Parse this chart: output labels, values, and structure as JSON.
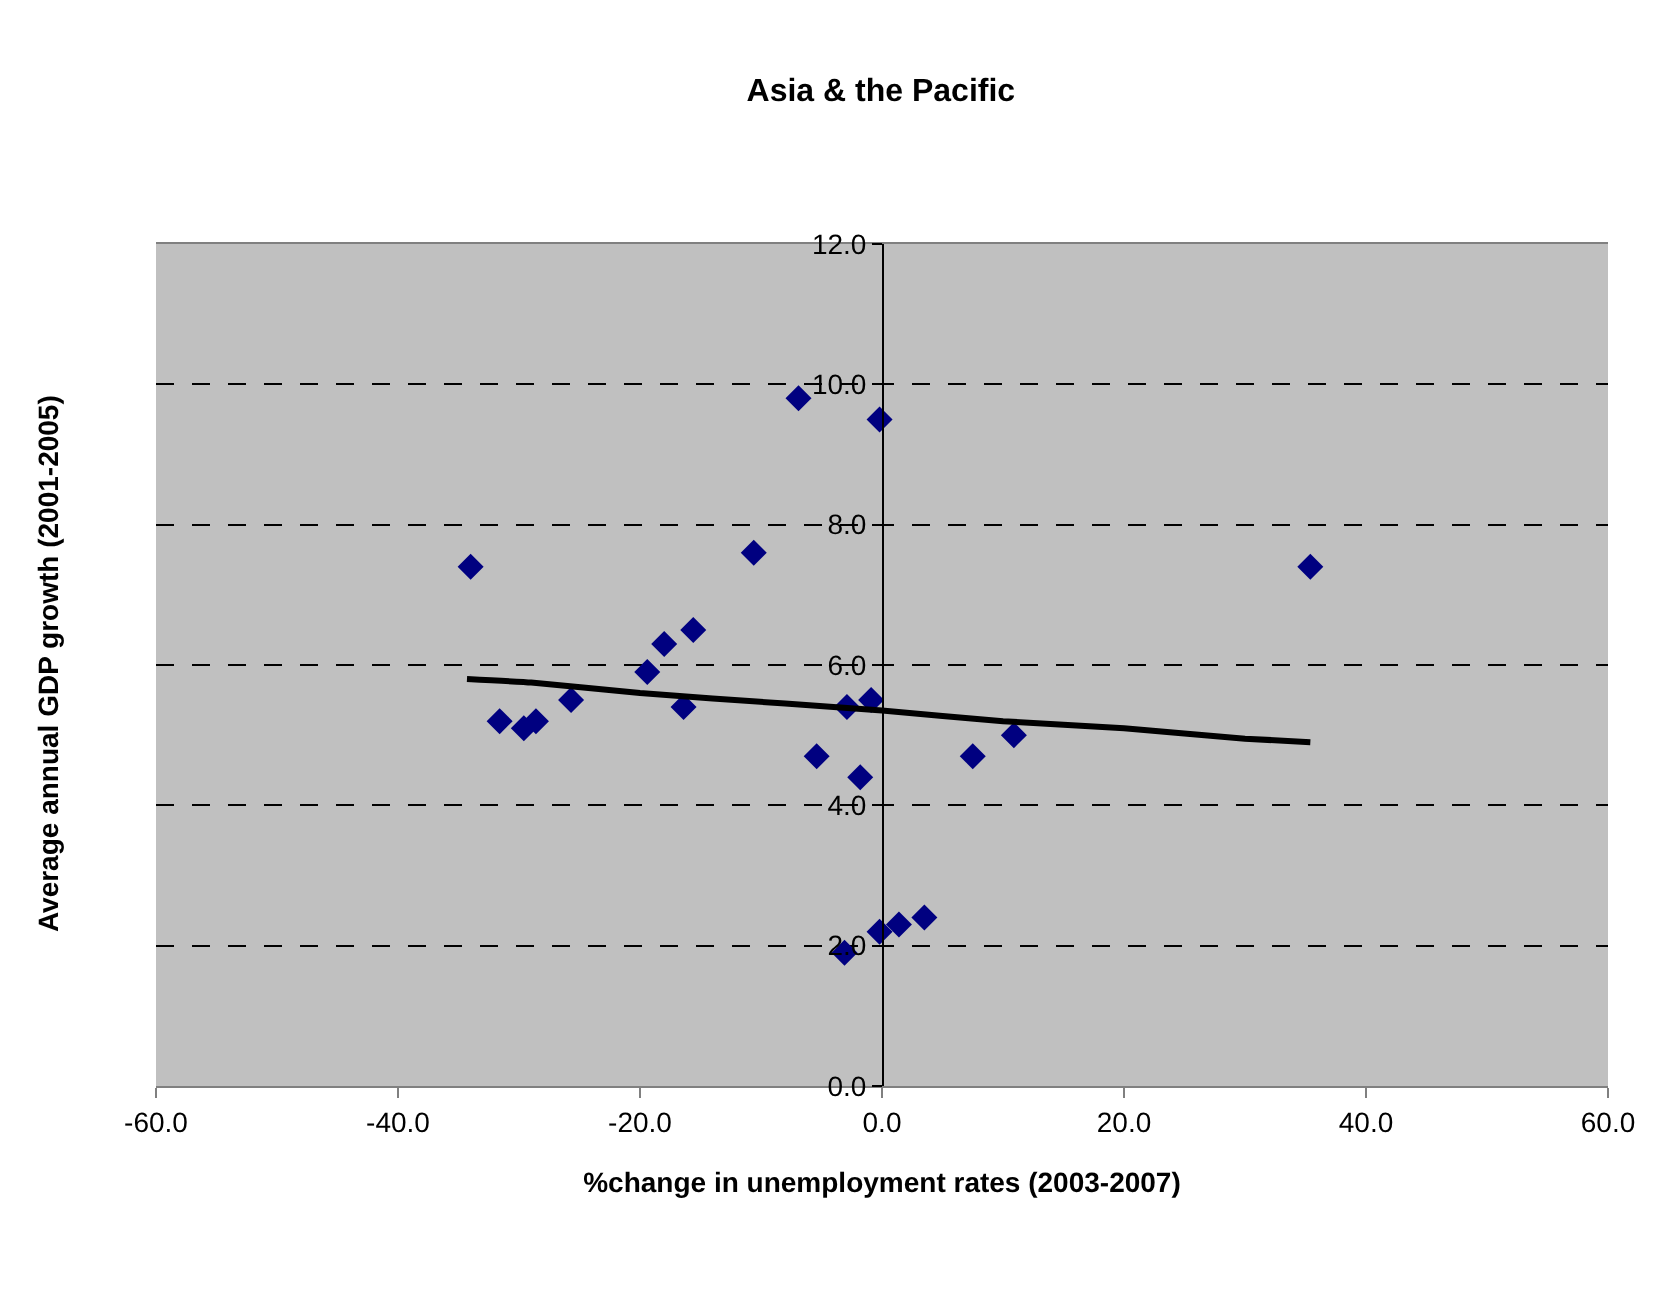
{
  "chart_data": {
    "type": "scatter",
    "title": "Asia & the Pacific",
    "xlabel": "%change in unemployment rates (2003-2007)",
    "ylabel": "Average annual GDP growth (2001-2005)",
    "series": [
      {
        "color": "#000080",
        "marker": "diamond",
        "x": [
          -34.0,
          -31.6,
          -29.6,
          -28.6,
          -25.7,
          -19.4,
          -18.0,
          -15.6,
          -16.4,
          -10.6,
          -5.4,
          -2.9,
          -1.8,
          -0.9,
          -6.9,
          -0.2,
          7.5,
          10.9,
          -3.1,
          -0.2,
          1.4,
          3.5,
          35.4
        ],
        "values": [
          7.4,
          5.2,
          5.1,
          5.2,
          5.5,
          5.9,
          6.3,
          6.5,
          5.4,
          7.6,
          4.7,
          5.4,
          4.4,
          5.5,
          9.8,
          9.5,
          4.7,
          5.0,
          1.9,
          2.2,
          2.3,
          2.4,
          7.4
        ]
      },
      {
        "type": "line",
        "color": "#000000",
        "marker": "none",
        "line_style": "solid",
        "x": [
          -34.3,
          -29.0,
          -20.0,
          -8.0,
          0.0,
          10.0,
          20.0,
          30.0,
          35.4
        ],
        "values": [
          5.8,
          5.75,
          5.6,
          5.45,
          5.35,
          5.2,
          5.1,
          4.95,
          4.9
        ]
      }
    ],
    "xlim": [
      -60,
      60
    ],
    "ylim": [
      0,
      12
    ],
    "xticks": [
      {
        "value": -60,
        "label": "-60.0"
      },
      {
        "value": -40,
        "label": "-40.0"
      },
      {
        "value": -20,
        "label": "-20.0"
      },
      {
        "value": 0,
        "label": "0.0"
      },
      {
        "value": 20,
        "label": "20.0"
      },
      {
        "value": 40,
        "label": "40.0"
      },
      {
        "value": 60,
        "label": "60.0"
      }
    ],
    "yticks": [
      {
        "value": 0,
        "label": "0.0"
      },
      {
        "value": 2,
        "label": "2.0"
      },
      {
        "value": 4,
        "label": "4.0"
      },
      {
        "value": 6,
        "label": "6.0"
      },
      {
        "value": 8,
        "label": "8.0"
      },
      {
        "value": 10,
        "label": "10.0"
      },
      {
        "value": 12,
        "label": "12.0"
      }
    ],
    "grid": "y"
  }
}
